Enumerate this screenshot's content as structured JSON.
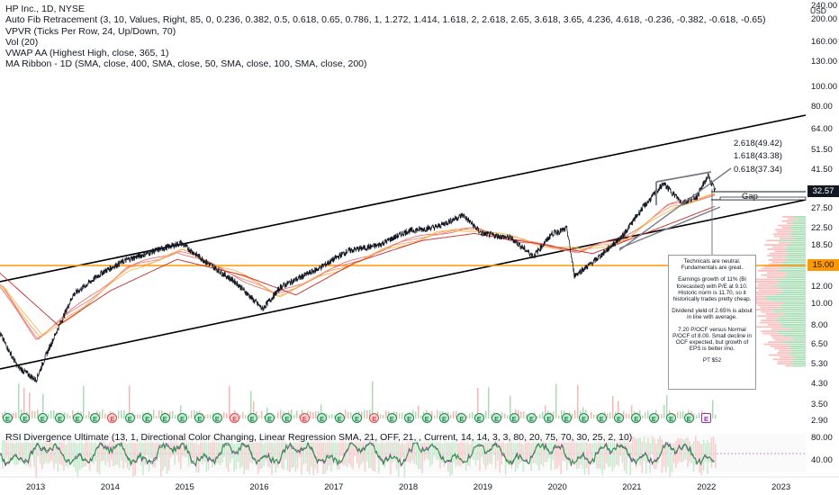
{
  "legend": {
    "title": "HP Inc., 1D, NYSE",
    "indicators": [
      "Auto Fib Retracement (3, 10, Values, Right, 85, 0, 0.236, 0.382, 0.5, 0.618, 0.65, 0.786, 1, 1.272, 1.414, 1.618, 2, 2.618, 2.65, 3.618, 3.65, 4.236, 4.618, -0.236, -0.382, -0.618, -0.65)",
      "VPVR (Ticks Per Row, 24, Up/Down, 70)",
      "Vol (20)",
      "VWAP AA (Highest High, close, 365, 1)",
      "MA Ribbon - 1D (SMA, close, 400, SMA, close, 50, SMA, close, 100, SMA, close, 200)"
    ]
  },
  "rsi_legend": "RSI Divergence Ultimate (13, 1, Directional Color Changing, Linear Regression SMA, 21, OFF, 21, , Current, 14, 14, 3, 3, 80, 20, 75, 70, 30, 25, 2, 10)",
  "price_axis": {
    "currency": "USD",
    "ticks": [
      "240.00",
      "200.00",
      "160.00",
      "130.00",
      "100.00",
      "80.00",
      "64.00",
      "51.50",
      "41.50",
      "32.57",
      "27.50",
      "22.50",
      "18.50",
      "15.00",
      "12.00",
      "10.00",
      "8.00",
      "6.50",
      "5.30",
      "4.30",
      "3.50",
      "2.90"
    ],
    "current_price": "32.57",
    "level_price": "15.00"
  },
  "rsi_axis": {
    "ticks": [
      "80.00",
      "40.00"
    ]
  },
  "time_axis": {
    "labels": [
      "2013",
      "2014",
      "2015",
      "2016",
      "2017",
      "2018",
      "2019",
      "2020",
      "2021",
      "2022",
      "2023"
    ]
  },
  "fib_labels": [
    "2.618(49.42)",
    "1.618(43.38)",
    "0.618(37.34)"
  ],
  "gap_label": "Gap",
  "note": {
    "paragraphs": [
      "Technicals are neutral. Fundamentals are great.",
      "Earnings growth of 11% (Bi forecasted) with P/E at 9.10. Historic norm is 11.70, so it historically trades pretty cheap.",
      "Dividend yield of 2.65% is about in line with average.",
      "7.20 P/OCF versus Normal P/OCF of 8.00. Small decline in OCF expected, but growth of EPS is better imo.",
      "PT $52"
    ]
  },
  "earnings_markers": {
    "letter": "E",
    "future_letter": "E",
    "pattern": [
      "g",
      "g",
      "g",
      "g",
      "g",
      "g",
      "r",
      "g",
      "g",
      "g",
      "g",
      "g",
      "g",
      "r",
      "g",
      "g",
      "g",
      "r",
      "g",
      "g",
      "g",
      "r",
      "g",
      "g",
      "g",
      "g",
      "g",
      "g",
      "g",
      "g",
      "g",
      "g",
      "g",
      "g",
      "g",
      "g",
      "g",
      "g",
      "g",
      "g",
      "f"
    ]
  },
  "colors": {
    "up": "#26a69a",
    "down": "#ef5350",
    "price_line": "#131722",
    "level": "#ff9800",
    "channel": "#000000",
    "rsi_green": "#1e9e3e",
    "rsi_red": "#e53935",
    "rsi_purple": "#9c27b0"
  },
  "series": {
    "price_anchors": [
      [
        2012.5,
        7.5
      ],
      [
        2012.75,
        5.2
      ],
      [
        2013.0,
        4.5
      ],
      [
        2013.15,
        6.0
      ],
      [
        2013.5,
        11.0
      ],
      [
        2013.9,
        14.0
      ],
      [
        2014.2,
        15.8
      ],
      [
        2014.6,
        17.5
      ],
      [
        2014.95,
        19.0
      ],
      [
        2015.3,
        15.5
      ],
      [
        2015.7,
        12.5
      ],
      [
        2016.05,
        9.5
      ],
      [
        2016.3,
        12.0
      ],
      [
        2016.8,
        14.5
      ],
      [
        2017.2,
        17.5
      ],
      [
        2017.6,
        18.5
      ],
      [
        2018.0,
        21.5
      ],
      [
        2018.4,
        22.5
      ],
      [
        2018.75,
        25.5
      ],
      [
        2019.0,
        21.0
      ],
      [
        2019.4,
        20.0
      ],
      [
        2019.7,
        16.5
      ],
      [
        2019.95,
        21.0
      ],
      [
        2020.15,
        22.0
      ],
      [
        2020.25,
        13.5
      ],
      [
        2020.5,
        15.5
      ],
      [
        2020.9,
        20.5
      ],
      [
        2021.15,
        27.0
      ],
      [
        2021.45,
        35.5
      ],
      [
        2021.7,
        29.0
      ],
      [
        2021.9,
        31.0
      ],
      [
        2022.05,
        38.5
      ],
      [
        2022.15,
        32.57
      ]
    ],
    "ma_anchors": [
      [
        2012.5,
        12.0
      ],
      [
        2013.0,
        7.0
      ],
      [
        2013.6,
        10.0
      ],
      [
        2014.2,
        14.5
      ],
      [
        2014.9,
        17.5
      ],
      [
        2015.6,
        14.0
      ],
      [
        2016.2,
        11.0
      ],
      [
        2016.9,
        14.0
      ],
      [
        2017.6,
        17.5
      ],
      [
        2018.3,
        21.0
      ],
      [
        2018.9,
        22.0
      ],
      [
        2019.6,
        19.0
      ],
      [
        2020.3,
        17.5
      ],
      [
        2020.9,
        20.0
      ],
      [
        2021.5,
        28.0
      ],
      [
        2022.15,
        32.0
      ]
    ],
    "ma200_anchors": [
      [
        2012.5,
        14.0
      ],
      [
        2013.3,
        8.0
      ],
      [
        2014.0,
        11.5
      ],
      [
        2014.9,
        16.0
      ],
      [
        2015.8,
        13.5
      ],
      [
        2016.5,
        11.0
      ],
      [
        2017.3,
        15.5
      ],
      [
        2018.2,
        19.5
      ],
      [
        2018.9,
        21.0
      ],
      [
        2019.7,
        19.0
      ],
      [
        2020.5,
        17.0
      ],
      [
        2021.2,
        21.0
      ],
      [
        2022.15,
        28.0
      ]
    ]
  }
}
